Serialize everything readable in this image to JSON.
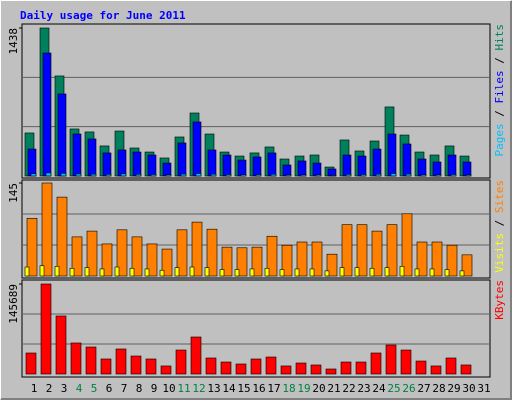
{
  "chart_data": [
    {
      "type": "bar",
      "title": "Daily usage for June 2011",
      "ylim": [
        0,
        1438
      ],
      "yticks": [
        1438
      ],
      "grid": true,
      "legend_separator": " / ",
      "series": [
        {
          "name": "Hits",
          "color": "#00805c",
          "values": [
            418,
            1438,
            972,
            457,
            428,
            292,
            437,
            272,
            233,
            175,
            379,
            612,
            408,
            233,
            194,
            224,
            282,
            165,
            194,
            204,
            87,
            350,
            243,
            340,
            671,
            398,
            233,
            204,
            292,
            194,
            0
          ]
        },
        {
          "name": "Files",
          "color": "#0000ff",
          "values": [
            262,
            1195,
            797,
            408,
            360,
            224,
            253,
            233,
            204,
            126,
            321,
            525,
            253,
            204,
            155,
            185,
            224,
            107,
            146,
            126,
            68,
            204,
            194,
            262,
            408,
            311,
            165,
            136,
            204,
            136,
            0
          ]
        },
        {
          "name": "Pages",
          "color": "#00c0ff",
          "values": [
            22,
            30,
            26,
            20,
            18,
            16,
            21,
            17,
            15,
            12,
            19,
            24,
            18,
            15,
            13,
            14,
            17,
            11,
            12,
            12,
            8,
            16,
            15,
            18,
            24,
            19,
            13,
            12,
            15,
            11,
            0
          ]
        }
      ]
    },
    {
      "type": "bar",
      "ylim": [
        0,
        145
      ],
      "yticks": [
        145
      ],
      "grid": true,
      "legend_separator": " / ",
      "series": [
        {
          "name": "Sites",
          "color": "#ff8000",
          "values": [
            90,
            145,
            123,
            61,
            70,
            50,
            72,
            61,
            50,
            42,
            72,
            84,
            73,
            45,
            44,
            45,
            62,
            48,
            53,
            53,
            34,
            80,
            80,
            70,
            80,
            97,
            53,
            53,
            48,
            33,
            0
          ]
        },
        {
          "name": "Visits",
          "color": "#ffff00",
          "values": [
            14,
            16,
            15,
            12,
            13,
            11,
            14,
            12,
            11,
            9,
            13,
            14,
            13,
            10,
            10,
            11,
            12,
            10,
            11,
            11,
            8,
            13,
            13,
            12,
            13,
            15,
            11,
            11,
            10,
            8,
            0
          ]
        }
      ]
    },
    {
      "type": "bar",
      "ylim": [
        0,
        145689
      ],
      "yticks": [
        145689
      ],
      "grid": true,
      "categories": [
        "1",
        "2",
        "3",
        "4",
        "5",
        "6",
        "7",
        "8",
        "9",
        "10",
        "11",
        "12",
        "13",
        "14",
        "15",
        "16",
        "17",
        "18",
        "19",
        "20",
        "21",
        "22",
        "23",
        "24",
        "25",
        "26",
        "27",
        "28",
        "29",
        "30",
        "31"
      ],
      "category_colors": [
        "#000000",
        "#000000",
        "#000000",
        "#008040",
        "#008040",
        "#000000",
        "#000000",
        "#000000",
        "#000000",
        "#000000",
        "#008040",
        "#008040",
        "#000000",
        "#000000",
        "#000000",
        "#000000",
        "#000000",
        "#008040",
        "#008040",
        "#000000",
        "#000000",
        "#000000",
        "#000000",
        "#000000",
        "#008040",
        "#008040",
        "#000000",
        "#000000",
        "#000000",
        "#000000",
        "#000000"
      ],
      "series": [
        {
          "name": "KBytes",
          "color": "#ff0000",
          "values": [
            34000,
            145689,
            93900,
            50200,
            43700,
            24300,
            40500,
            29100,
            24300,
            13000,
            38800,
            59900,
            25900,
            19400,
            16200,
            24300,
            27500,
            13000,
            17800,
            14600,
            8100,
            19400,
            19400,
            34000,
            46900,
            38800,
            21000,
            13000,
            25900,
            14600,
            0
          ]
        }
      ]
    }
  ]
}
